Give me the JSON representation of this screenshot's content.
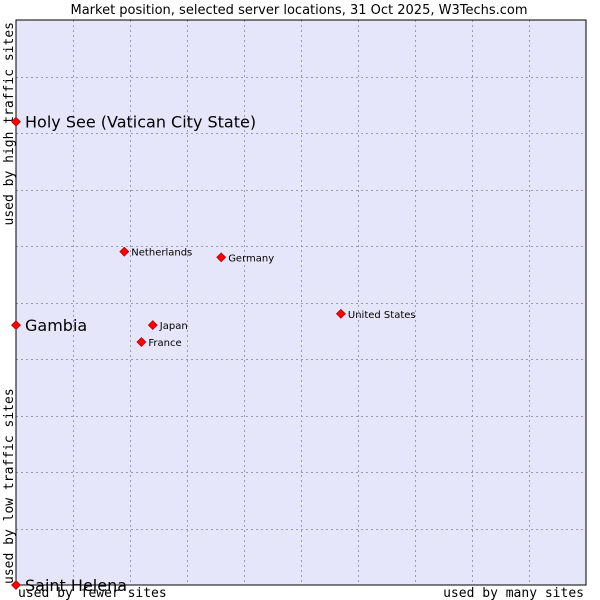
{
  "chart_data": {
    "type": "scatter",
    "title": "Market position, selected server locations, 31 Oct 2025, W3Techs.com",
    "x_axis": {
      "low_label": "used by fewer sites",
      "high_label": "used by many sites",
      "range": [
        0,
        10
      ]
    },
    "y_axis": {
      "low_label": "used by low traffic sites",
      "high_label": "used by high traffic sites",
      "range": [
        0,
        10
      ]
    },
    "grid": true,
    "points": [
      {
        "name": "Holy See (Vatican City State)",
        "x": 0.0,
        "y": 8.2,
        "emphasis": true
      },
      {
        "name": "Netherlands",
        "x": 1.9,
        "y": 5.9,
        "emphasis": false
      },
      {
        "name": "Germany",
        "x": 3.6,
        "y": 5.8,
        "emphasis": false
      },
      {
        "name": "United States",
        "x": 5.7,
        "y": 4.8,
        "emphasis": false
      },
      {
        "name": "Gambia",
        "x": 0.0,
        "y": 4.6,
        "emphasis": true
      },
      {
        "name": "Japan",
        "x": 2.4,
        "y": 4.6,
        "emphasis": false
      },
      {
        "name": "France",
        "x": 2.2,
        "y": 4.3,
        "emphasis": false
      },
      {
        "name": "Saint Helena",
        "x": 0.0,
        "y": 0.0,
        "emphasis": true
      }
    ],
    "colors": {
      "plot_background": "#e6e6fa",
      "marker": "#ff0000",
      "marker_outline": "#990000",
      "gridline": "#9999bb"
    }
  }
}
